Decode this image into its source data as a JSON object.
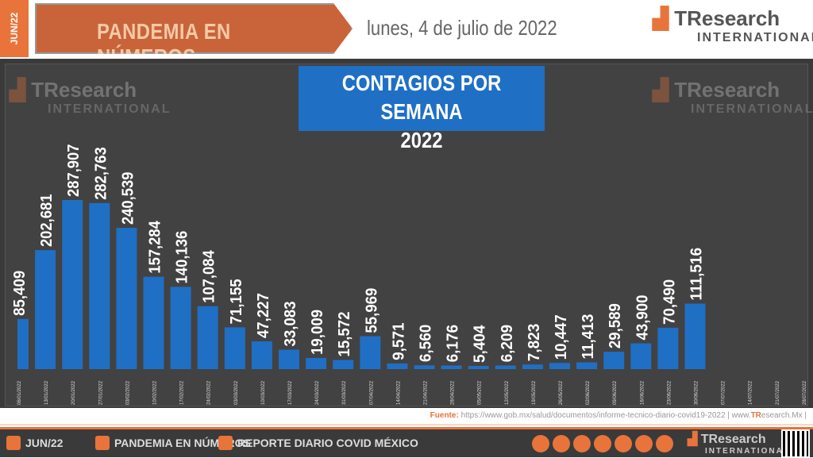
{
  "header": {
    "side_tag": "JUN/22",
    "banner": "PANDEMIA EN NÚMEROS",
    "date": "lunes, 4 de julio de 2022",
    "logo_main": "TResearch",
    "logo_sub": "INTERNATIONAL"
  },
  "chart_data": {
    "type": "bar",
    "title": "CONTAGIOS POR SEMANA",
    "subtitle": "2022",
    "categories": [
      "06/01/2022",
      "13/01/2022",
      "20/01/2022",
      "27/01/2022",
      "03/02/2022",
      "10/02/2022",
      "17/02/2022",
      "24/02/2022",
      "03/03/2022",
      "10/03/2022",
      "17/03/2022",
      "24/03/2022",
      "31/03/2022",
      "07/04/2022",
      "14/04/2022",
      "21/04/2022",
      "28/04/2022",
      "05/05/2022",
      "12/05/2022",
      "19/05/2022",
      "26/05/2022",
      "02/06/2022",
      "09/06/2022",
      "16/06/2022",
      "23/06/2022",
      "30/06/2022",
      "07/07/2022",
      "14/07/2022",
      "21/07/2022",
      "28/07/2022"
    ],
    "values": [
      85409,
      202681,
      287907,
      282763,
      240539,
      157284,
      140136,
      107084,
      71155,
      47227,
      33083,
      19009,
      15572,
      55969,
      9571,
      6560,
      6176,
      5404,
      6209,
      7823,
      10447,
      11413,
      29589,
      43900,
      70490,
      111516,
      null,
      null,
      null,
      null
    ],
    "labels": [
      "85,409",
      "202,681",
      "287,907",
      "282,763",
      "240,539",
      "157,284",
      "140,136",
      "107,084",
      "71,155",
      "47,227",
      "33,083",
      "19,009",
      "15,572",
      "55,969",
      "9,571",
      "6,560",
      "6,176",
      "5,404",
      "6,209",
      "7,823",
      "10,447",
      "11,413",
      "29,589",
      "43,900",
      "70,490",
      "111,516"
    ],
    "bar_color": "#1f6fc5",
    "grid": false
  },
  "source": {
    "label": "Fuente:",
    "url": "https://www.gob.mx/salud/documentos/informe-tecnico-diario-covid19-2022",
    "site_prefix": "www.",
    "site_brand": "TR",
    "site_rest": "esearch.Mx"
  },
  "footer": {
    "item1": "JUN/22",
    "item2": "PANDEMIA EN NÚMEROS",
    "item3": "REPORTE DIARIO COVID MÉXICO",
    "logo_main": "TResearch",
    "logo_sub": "INTERNATIONAL"
  },
  "colors": {
    "accent": "#e8743b",
    "background": "#3a3a3a"
  }
}
